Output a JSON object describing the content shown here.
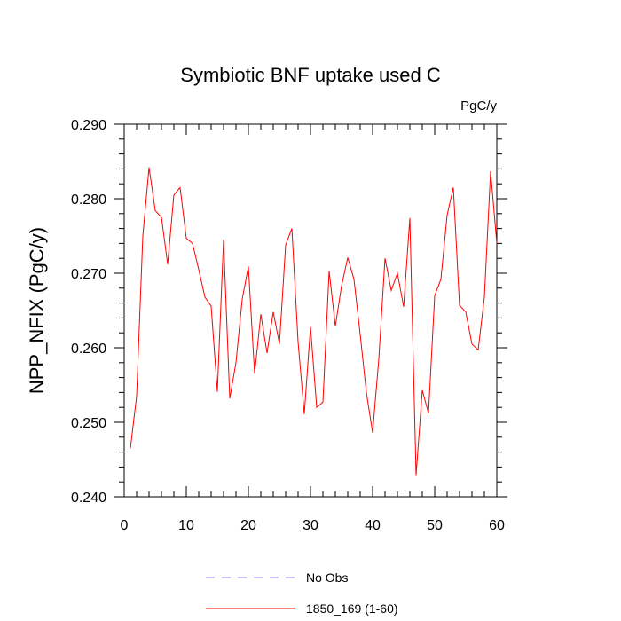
{
  "chart_data": {
    "type": "line",
    "title": "Symbiotic BNF uptake used C",
    "units_label": "PgC/y",
    "xlabel": "",
    "ylabel": "NPP_NFIX  (PgC/y)",
    "xlim": [
      0,
      60
    ],
    "ylim": [
      0.24,
      0.29
    ],
    "xticks": [
      0,
      10,
      20,
      30,
      40,
      50,
      60
    ],
    "yticks": [
      0.24,
      0.25,
      0.26,
      0.27,
      0.28,
      0.29
    ],
    "ytick_labels": [
      "0.240",
      "0.250",
      "0.260",
      "0.270",
      "0.280",
      "0.290"
    ],
    "grid": false,
    "legend_position": "bottom-center",
    "series": [
      {
        "name": "No Obs",
        "color": "#8888ff",
        "dash": "dashed",
        "x": [],
        "values": []
      },
      {
        "name": "1850_169 (1-60)",
        "color": "#ff0000",
        "dash": "solid",
        "x": [
          1,
          2,
          3,
          4,
          5,
          6,
          7,
          8,
          9,
          10,
          11,
          12,
          13,
          14,
          15,
          16,
          17,
          18,
          19,
          20,
          21,
          22,
          23,
          24,
          25,
          26,
          27,
          28,
          29,
          30,
          31,
          32,
          33,
          34,
          35,
          36,
          37,
          38,
          39,
          40,
          41,
          42,
          43,
          44,
          45,
          46,
          47,
          48,
          49,
          50,
          51,
          52,
          53,
          54,
          55,
          56,
          57,
          58,
          59,
          60
        ],
        "values": [
          0.2465,
          0.2535,
          0.275,
          0.2842,
          0.2784,
          0.2775,
          0.2712,
          0.2805,
          0.2815,
          0.2747,
          0.274,
          0.2705,
          0.2668,
          0.2656,
          0.2541,
          0.2745,
          0.2532,
          0.258,
          0.2665,
          0.2709,
          0.2565,
          0.2645,
          0.2593,
          0.2648,
          0.2605,
          0.2738,
          0.276,
          0.2608,
          0.2511,
          0.2628,
          0.252,
          0.2527,
          0.2703,
          0.2629,
          0.2683,
          0.2721,
          0.2692,
          0.2618,
          0.254,
          0.2486,
          0.2585,
          0.272,
          0.2677,
          0.27,
          0.2655,
          0.2774,
          0.2429,
          0.2543,
          0.2512,
          0.267,
          0.2692,
          0.2778,
          0.2815,
          0.2657,
          0.2648,
          0.2605,
          0.2597,
          0.2668,
          0.2837,
          0.274
        ]
      }
    ]
  }
}
